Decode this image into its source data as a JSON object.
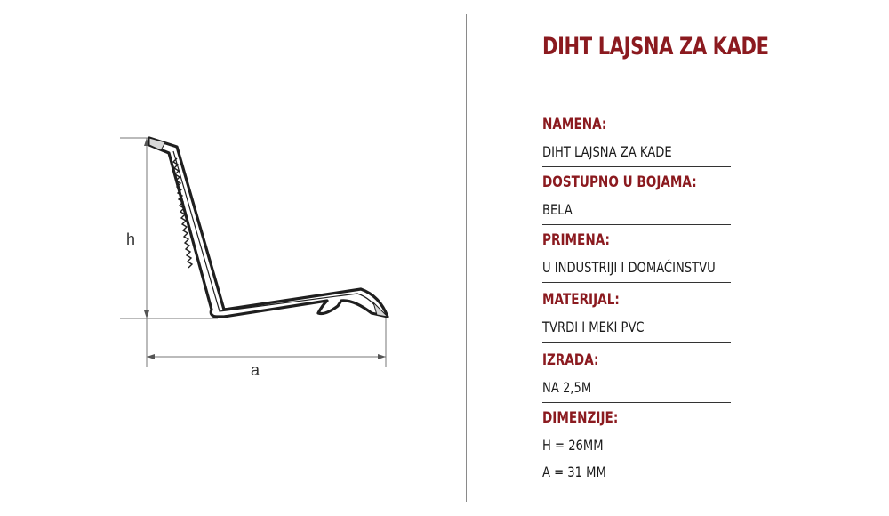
{
  "drawing": {
    "label_h": "h",
    "label_a": "a"
  },
  "title": "DIHT LAJSNA ZA KADE",
  "specs": [
    {
      "label": "NAMENA:",
      "value": "DIHT LAJSNA ZA KADE"
    },
    {
      "label": "DOSTUPNO U BOJAMA:",
      "value": "BELA"
    },
    {
      "label": "PRIMENA:",
      "value": "U INDUSTRIJI I DOMAĆINSTVU"
    },
    {
      "label": "MATERIJAL:",
      "value": "TVRDI I MEKI PVC"
    },
    {
      "label": "IZRADA:",
      "value": "NA 2,5M"
    }
  ],
  "dimensions": {
    "label": "DIMENZIJE:",
    "values": [
      "H = 26MM",
      "A = 31 MM"
    ]
  },
  "colors": {
    "accent": "#8b1a1f",
    "text": "#1b1b1b",
    "rule": "#333333"
  }
}
